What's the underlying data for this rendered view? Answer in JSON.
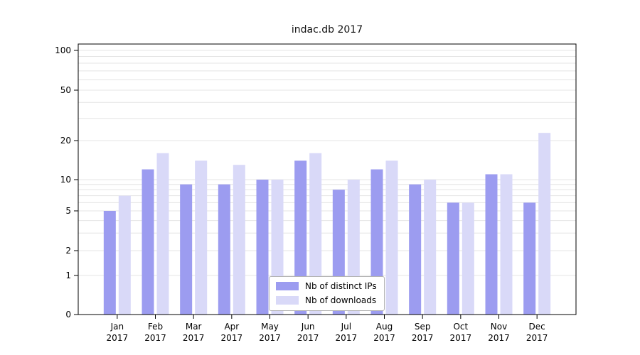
{
  "chart_data": {
    "type": "bar",
    "title": "indac.db 2017",
    "categories": [
      "Jan 2017",
      "Feb 2017",
      "Mar 2017",
      "Apr 2017",
      "May 2017",
      "Jun 2017",
      "Jul 2017",
      "Aug 2017",
      "Sep 2017",
      "Oct 2017",
      "Nov 2017",
      "Dec 2017"
    ],
    "series": [
      {
        "name": "Nb of distinct IPs",
        "color": "#9c9cf0",
        "values": [
          5,
          12,
          9,
          9,
          10,
          14,
          8,
          12,
          9,
          6,
          11,
          6
        ]
      },
      {
        "name": "Nb of downloads",
        "color": "#d9d9f8",
        "values": [
          7,
          16,
          14,
          13,
          10,
          16,
          10,
          14,
          10,
          6,
          11,
          23
        ]
      }
    ],
    "y_ticks": [
      0,
      1,
      2,
      5,
      10,
      20,
      50,
      100
    ],
    "yscale": "symlog",
    "ylim": [
      0,
      100
    ],
    "xlabel": "",
    "ylabel": "",
    "grid": "horizontal minor log gridlines",
    "legend_position": "lower center",
    "colors": {
      "grid": "#e4e4e4",
      "axis": "#000000",
      "background": "#ffffff"
    }
  }
}
